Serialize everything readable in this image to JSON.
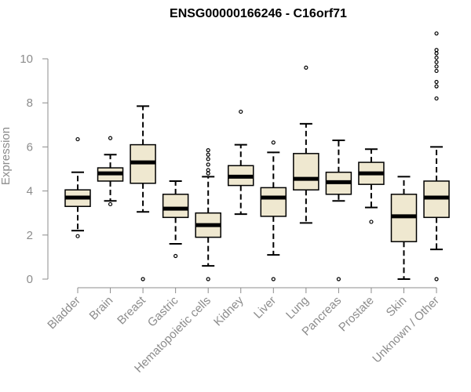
{
  "chart_data": {
    "type": "boxplot",
    "title": "ENSG00000166246 - C16orf71",
    "ylabel": "Expression",
    "xlabel": "",
    "ylim": [
      0,
      11.3
    ],
    "yticks": [
      0,
      2,
      4,
      6,
      8,
      10
    ],
    "grid": false,
    "box_fill": "#efe8d0",
    "categories": [
      "Bladder",
      "Brain",
      "Breast",
      "Gastric",
      "Hematopoietic cells",
      "Kidney",
      "Liver",
      "Lung",
      "Pancreas",
      "Prostate",
      "Skin",
      "Unknown / Other"
    ],
    "boxes": [
      {
        "whisker_low": 2.2,
        "q1": 3.3,
        "median": 3.7,
        "q3": 4.05,
        "whisker_high": 4.85,
        "outliers": [
          1.95,
          6.35
        ]
      },
      {
        "whisker_low": 3.55,
        "q1": 4.45,
        "median": 4.8,
        "q3": 5.05,
        "whisker_high": 5.65,
        "outliers": [
          3.4,
          6.4
        ]
      },
      {
        "whisker_low": 3.05,
        "q1": 4.35,
        "median": 5.3,
        "q3": 6.1,
        "whisker_high": 7.85,
        "outliers": [
          0.0
        ]
      },
      {
        "whisker_low": 1.6,
        "q1": 2.8,
        "median": 3.2,
        "q3": 3.85,
        "whisker_high": 4.45,
        "outliers": [
          1.05
        ]
      },
      {
        "whisker_low": 0.6,
        "q1": 1.9,
        "median": 2.45,
        "q3": 3.0,
        "whisker_high": 4.65,
        "outliers": [
          0.0,
          4.8,
          4.95,
          5.2,
          5.45,
          5.65,
          5.85
        ]
      },
      {
        "whisker_low": 2.95,
        "q1": 4.25,
        "median": 4.65,
        "q3": 5.15,
        "whisker_high": 6.1,
        "outliers": [
          7.6
        ]
      },
      {
        "whisker_low": 1.1,
        "q1": 2.85,
        "median": 3.7,
        "q3": 4.15,
        "whisker_high": 5.75,
        "outliers": [
          0.0,
          6.2
        ]
      },
      {
        "whisker_low": 2.55,
        "q1": 4.05,
        "median": 4.55,
        "q3": 5.7,
        "whisker_high": 7.05,
        "outliers": [
          9.6
        ]
      },
      {
        "whisker_low": 3.55,
        "q1": 3.85,
        "median": 4.4,
        "q3": 4.85,
        "whisker_high": 6.3,
        "outliers": [
          0.0
        ]
      },
      {
        "whisker_low": 3.25,
        "q1": 4.3,
        "median": 4.8,
        "q3": 5.3,
        "whisker_high": 5.9,
        "outliers": [
          2.6
        ]
      },
      {
        "whisker_low": 0.0,
        "q1": 1.7,
        "median": 2.85,
        "q3": 3.85,
        "whisker_high": 4.65,
        "outliers": []
      },
      {
        "whisker_low": 1.35,
        "q1": 2.8,
        "median": 3.7,
        "q3": 4.45,
        "whisker_high": 6.0,
        "outliers": [
          0.0,
          8.2,
          8.75,
          8.95,
          9.45,
          9.65,
          9.85,
          10.05,
          10.25,
          10.4,
          11.15
        ]
      }
    ]
  }
}
